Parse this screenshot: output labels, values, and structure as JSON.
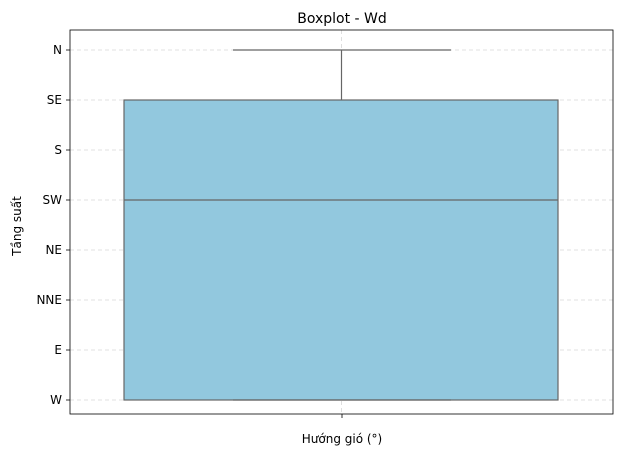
{
  "chart_data": {
    "type": "box",
    "title": "Boxplot - Wd",
    "xlabel": "Hướng gió (°)",
    "ylabel": "Tầng suất",
    "y_categories": [
      "W",
      "E",
      "NNE",
      "NE",
      "SW",
      "S",
      "SE",
      "N"
    ],
    "box": {
      "whisker_low": "W",
      "q1": "W",
      "median": "SW",
      "q3": "SE",
      "whisker_high": "N"
    },
    "grid": true,
    "colors": {
      "box_fill": "#92c8de",
      "box_edge": "#666666",
      "grid": "#d6d6d6"
    }
  }
}
